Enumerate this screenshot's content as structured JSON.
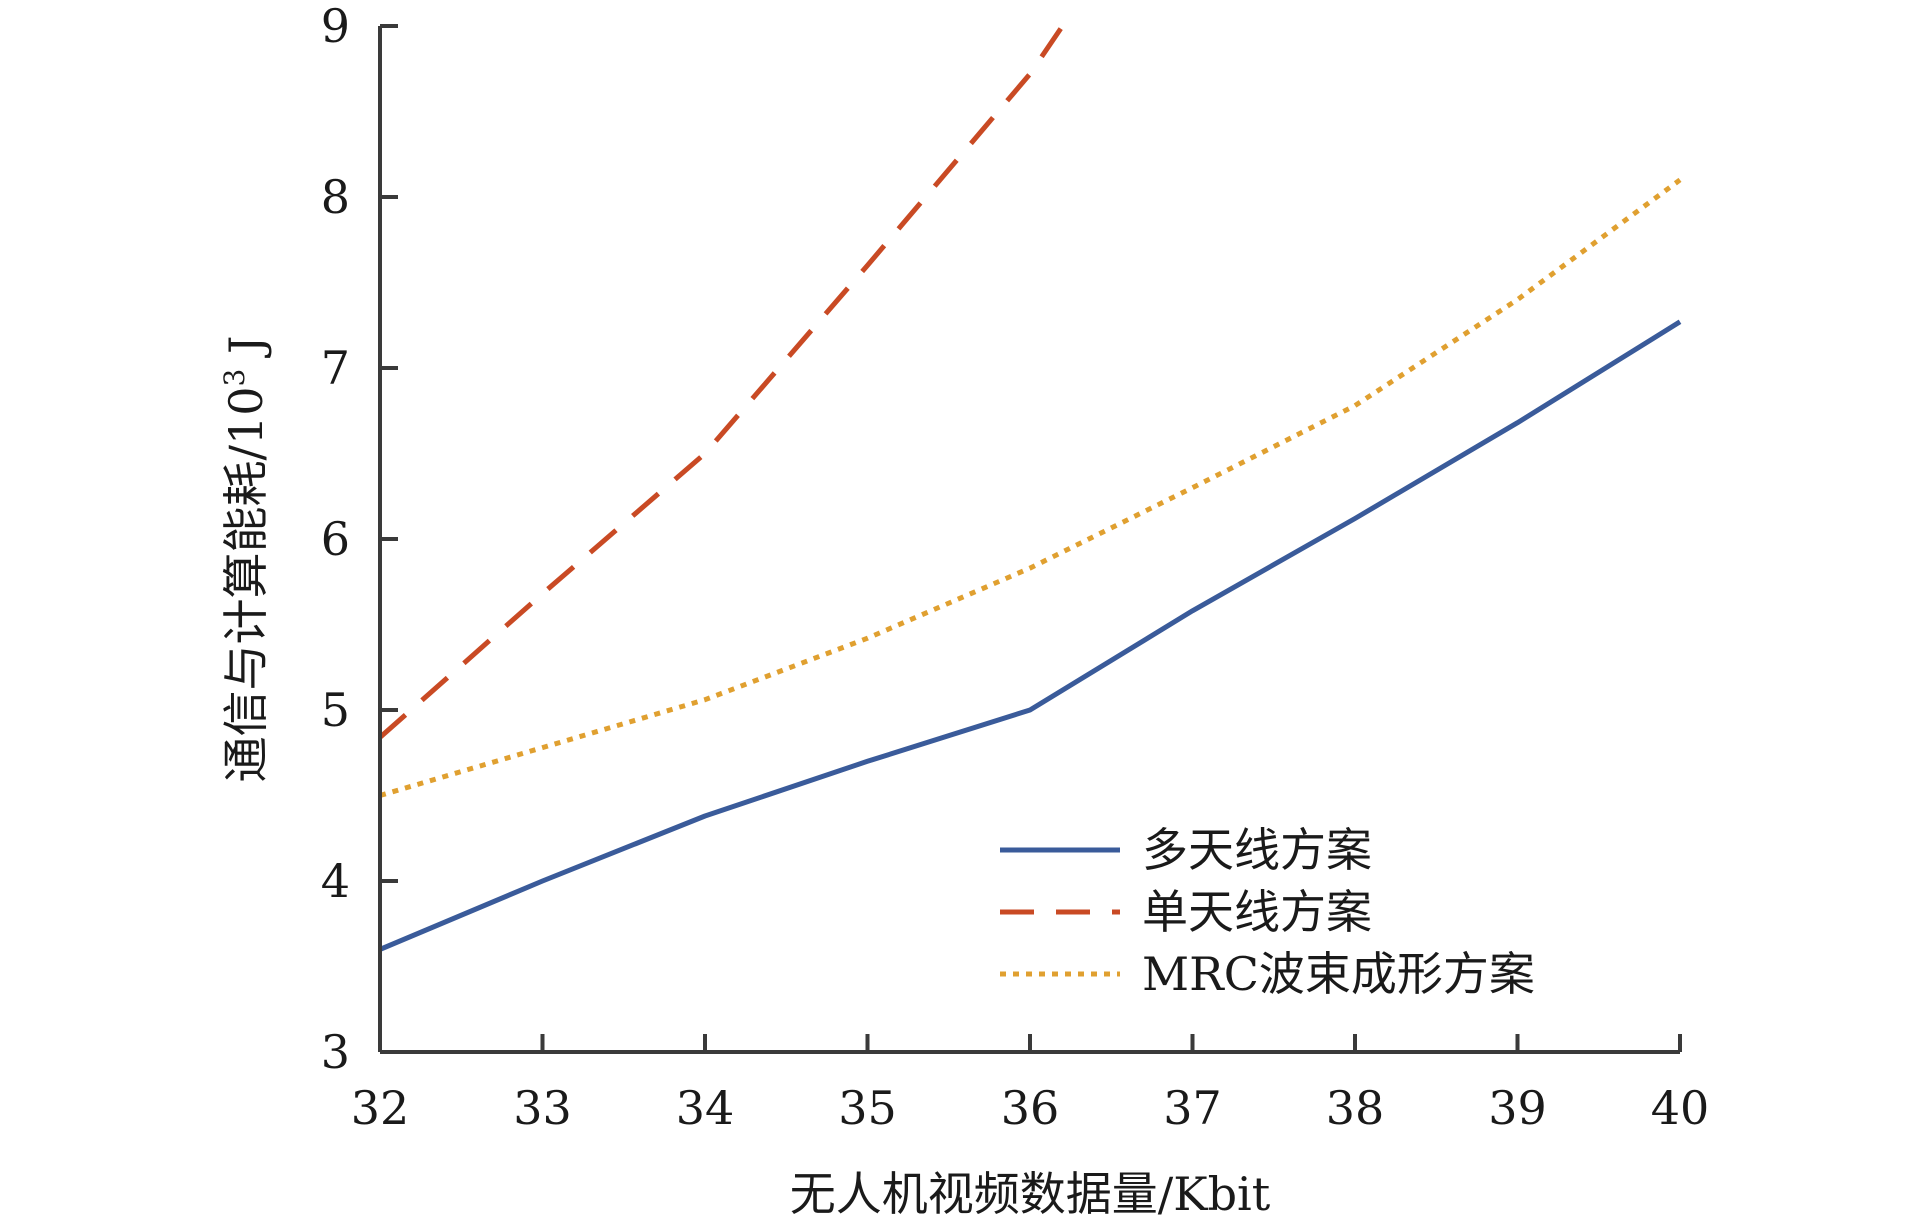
{
  "chart_data": {
    "type": "line",
    "title": "",
    "xlabel": "无人机视频数据量/Kbit",
    "ylabel_main": "通信与计算能耗/10",
    "ylabel_sup": "3",
    "ylabel_unit": " J",
    "xlim": [
      32,
      40
    ],
    "ylim": [
      3,
      9
    ],
    "xticks": [
      32,
      33,
      34,
      35,
      36,
      37,
      38,
      39,
      40
    ],
    "yticks": [
      3,
      4,
      5,
      6,
      7,
      8,
      9
    ],
    "grid": false,
    "legend_position": "bottom-right",
    "series": [
      {
        "name": "多天线方案",
        "style": "solid",
        "color": "#3a5b9a",
        "x": [
          32,
          33,
          34,
          35,
          36,
          37,
          38,
          39,
          40
        ],
        "y": [
          3.6,
          4.0,
          4.38,
          4.7,
          5.0,
          5.58,
          6.12,
          6.68,
          7.27
        ]
      },
      {
        "name": "单天线方案",
        "style": "dashed",
        "color": "#c94a24",
        "x": [
          32,
          33,
          34,
          35,
          36,
          36.2
        ],
        "y": [
          4.84,
          5.68,
          6.5,
          7.6,
          8.72,
          9.0
        ]
      },
      {
        "name": "MRC波束成形方案",
        "style": "dotted",
        "color": "#e0a030",
        "x": [
          32,
          33,
          34,
          35,
          36,
          37,
          38,
          39,
          40
        ],
        "y": [
          4.5,
          4.78,
          5.06,
          5.42,
          5.83,
          6.3,
          6.78,
          7.4,
          8.1
        ]
      }
    ]
  }
}
